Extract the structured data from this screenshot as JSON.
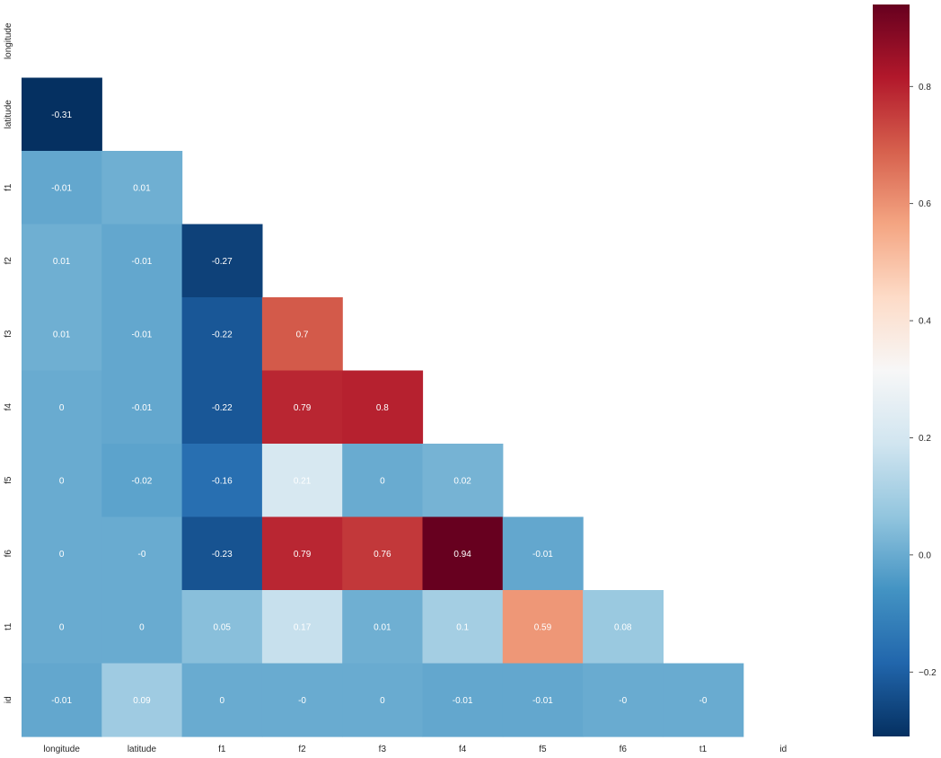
{
  "chart_data": {
    "type": "heatmap",
    "title": "",
    "xlabel": "",
    "ylabel": "",
    "mask": "upper-triangle-including-diagonal",
    "x_labels": [
      "longitude",
      "latitude",
      "f1",
      "f2",
      "f3",
      "f4",
      "f5",
      "f6",
      "t1",
      "id"
    ],
    "y_labels": [
      "longitude",
      "latitude",
      "f1",
      "f2",
      "f3",
      "f4",
      "f5",
      "f6",
      "t1",
      "id"
    ],
    "values": [
      [
        null,
        null,
        null,
        null,
        null,
        null,
        null,
        null,
        null,
        null
      ],
      [
        -0.31,
        null,
        null,
        null,
        null,
        null,
        null,
        null,
        null,
        null
      ],
      [
        -0.01,
        0.01,
        null,
        null,
        null,
        null,
        null,
        null,
        null,
        null
      ],
      [
        0.01,
        -0.01,
        -0.27,
        null,
        null,
        null,
        null,
        null,
        null,
        null
      ],
      [
        0.01,
        -0.01,
        -0.22,
        0.7,
        null,
        null,
        null,
        null,
        null,
        null
      ],
      [
        0,
        -0.01,
        -0.22,
        0.79,
        0.8,
        null,
        null,
        null,
        null,
        null
      ],
      [
        0,
        -0.02,
        -0.16,
        0.21,
        0,
        0.02,
        null,
        null,
        null,
        null
      ],
      [
        0,
        -0.0,
        -0.23,
        0.79,
        0.76,
        0.94,
        -0.01,
        null,
        null,
        null
      ],
      [
        0,
        0,
        0.05,
        0.17,
        0.01,
        0.1,
        0.59,
        0.08,
        null,
        null
      ],
      [
        -0.01,
        0.09,
        0,
        -0.0,
        0,
        -0.01,
        -0.01,
        -0.0,
        -0.0,
        null
      ]
    ],
    "cell_labels": [
      [
        null,
        null,
        null,
        null,
        null,
        null,
        null,
        null,
        null,
        null
      ],
      [
        "-0.31",
        null,
        null,
        null,
        null,
        null,
        null,
        null,
        null,
        null
      ],
      [
        "-0.01",
        "0.01",
        null,
        null,
        null,
        null,
        null,
        null,
        null,
        null
      ],
      [
        "0.01",
        "-0.01",
        "-0.27",
        null,
        null,
        null,
        null,
        null,
        null,
        null
      ],
      [
        "0.01",
        "-0.01",
        "-0.22",
        "0.7",
        null,
        null,
        null,
        null,
        null,
        null
      ],
      [
        "0",
        "-0.01",
        "-0.22",
        "0.79",
        "0.8",
        null,
        null,
        null,
        null,
        null
      ],
      [
        "0",
        "-0.02",
        "-0.16",
        "0.21",
        "0",
        "0.02",
        null,
        null,
        null,
        null
      ],
      [
        "0",
        "-0",
        "-0.23",
        "0.79",
        "0.76",
        "0.94",
        "-0.01",
        null,
        null,
        null
      ],
      [
        "0",
        "0",
        "0.05",
        "0.17",
        "0.01",
        "0.1",
        "0.59",
        "0.08",
        null,
        null
      ],
      [
        "-0.01",
        "0.09",
        "0",
        "-0",
        "0",
        "-0.01",
        "-0.01",
        "-0",
        "-0",
        null
      ]
    ],
    "colormap": "RdBu_r",
    "colormap_stops": [
      "#053061",
      "#2166ac",
      "#4393c3",
      "#92c5de",
      "#d1e5f0",
      "#f7f7f7",
      "#fddbc7",
      "#f4a582",
      "#d6604d",
      "#b2182b",
      "#67001f"
    ],
    "vmin": -0.31,
    "vmax": 0.94,
    "colorbar_ticks": [
      -0.2,
      0.0,
      0.2,
      0.4,
      0.6,
      0.8
    ],
    "colorbar_tick_labels": [
      "−0.2",
      "0.0",
      "0.2",
      "0.4",
      "0.6",
      "0.8"
    ],
    "grid": false,
    "legend": "colorbar-right"
  }
}
